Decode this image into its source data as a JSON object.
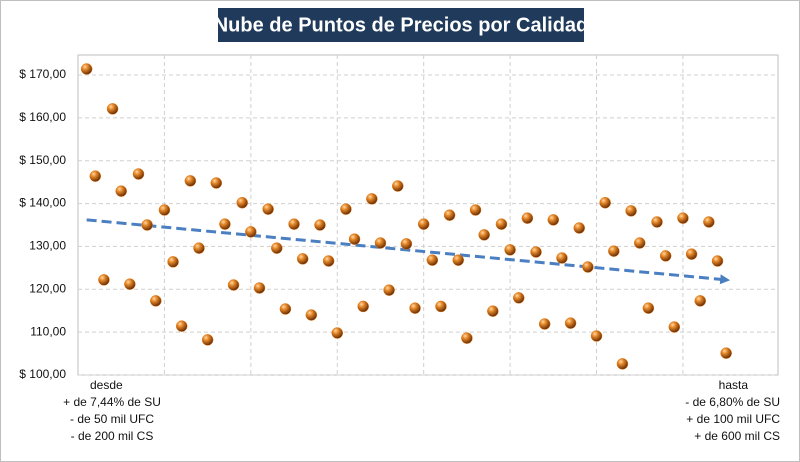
{
  "chart_data": {
    "type": "scatter",
    "title": "Nube de Puntos de Precios por Calidad",
    "x": [
      1,
      2,
      3,
      4,
      5,
      6,
      7,
      8,
      9,
      10,
      11,
      12,
      13,
      14,
      15,
      16,
      17,
      18,
      19,
      20,
      21,
      22,
      23,
      24,
      25,
      26,
      27,
      28,
      29,
      30,
      31,
      32,
      33,
      34,
      35,
      36,
      37,
      38,
      39,
      40,
      41,
      42,
      43,
      44,
      45,
      46,
      47,
      48,
      49,
      50,
      51,
      52,
      53,
      54,
      55,
      56,
      57,
      58,
      59,
      60,
      61,
      62,
      63,
      64,
      65,
      66,
      67,
      68,
      69,
      70,
      71,
      72,
      73,
      74,
      75
    ],
    "values": [
      171.4,
      146.4,
      122.2,
      162.1,
      142.9,
      121.2,
      146.9,
      135.0,
      117.3,
      138.5,
      126.4,
      111.4,
      145.3,
      129.6,
      108.2,
      144.8,
      135.2,
      121.0,
      140.2,
      133.4,
      120.3,
      138.7,
      129.6,
      115.4,
      135.2,
      127.1,
      114.0,
      135.0,
      126.6,
      109.8,
      138.7,
      131.7,
      116.0,
      141.1,
      130.8,
      119.8,
      144.1,
      130.6,
      115.6,
      135.2,
      126.8,
      116.0,
      137.3,
      126.8,
      108.6,
      138.5,
      132.7,
      114.9,
      135.2,
      129.2,
      118.0,
      136.6,
      128.7,
      111.9,
      136.2,
      127.3,
      112.1,
      134.3,
      125.2,
      109.1,
      140.2,
      128.9,
      102.6,
      138.3,
      130.8,
      115.6,
      135.7,
      127.8,
      111.2,
      136.6,
      128.2,
      117.3,
      135.7,
      126.6,
      105.1
    ],
    "color": "#e07b1a",
    "xlim": [
      0,
      81
    ],
    "xticks": [
      10,
      20,
      30,
      40,
      50,
      60,
      70
    ],
    "ylim": [
      100,
      170
    ],
    "yticks": [
      {
        "value": 100,
        "label": "$ 100,00"
      },
      {
        "value": 110,
        "label": "110,00"
      },
      {
        "value": 120,
        "label": "120,00"
      },
      {
        "value": 130,
        "label": "130,00"
      },
      {
        "value": 140,
        "label": "$ 140,00"
      },
      {
        "value": 150,
        "label": "$ 150,00"
      },
      {
        "value": 160,
        "label": "$ 160,00"
      },
      {
        "value": 170,
        "label": "$ 170,00"
      }
    ],
    "grid": true,
    "trendline": {
      "x": [
        1,
        75
      ],
      "values": [
        136.2,
        122.2
      ],
      "color": "#4a7fc1"
    },
    "annotations": {
      "left": [
        "desde",
        "+ de 7,44% de SU",
        "- de 50 mil UFC",
        "- de 200 mil CS"
      ],
      "right": [
        "hasta",
        "- de 6,80% de SU",
        "+ de 100 mil UFC",
        "+ de 600 mil CS"
      ]
    }
  }
}
